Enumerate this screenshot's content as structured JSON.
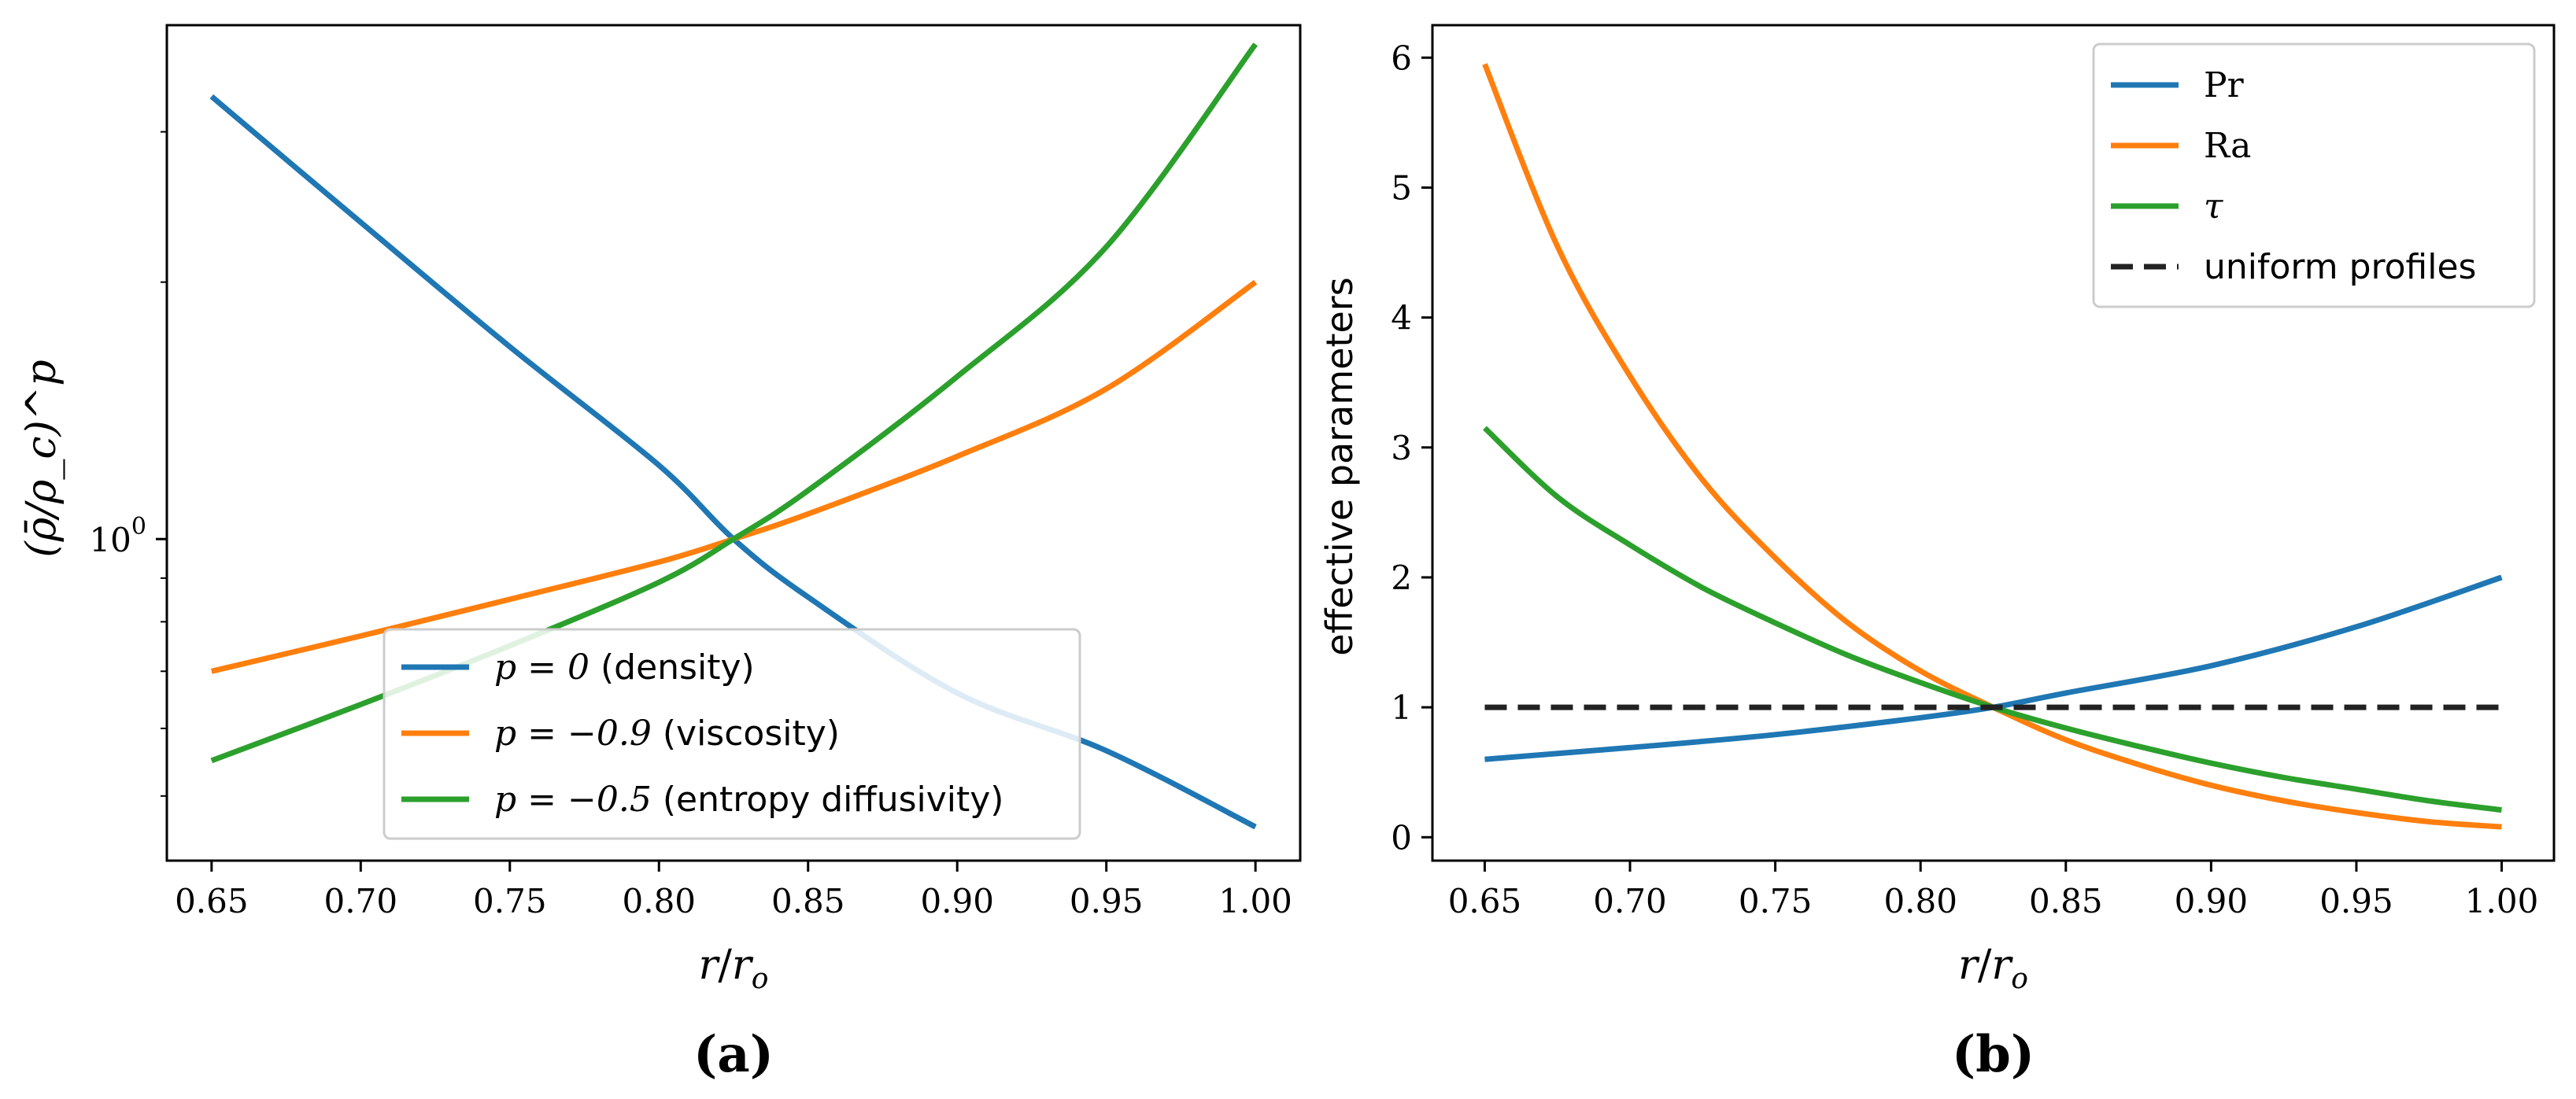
{
  "chart_data": [
    {
      "type": "line",
      "panel_label": "(a)",
      "title": "",
      "xlabel": "r/r_o",
      "xlabel_parts": {
        "num": "r",
        "den": "r",
        "den_sub": "o"
      },
      "ylabel": "(ρ̄/ρ_c)^p",
      "yscale": "log",
      "xlim": [
        0.635,
        1.015
      ],
      "ylim": [
        0.42,
        4.0
      ],
      "x_ticks": [
        "0.65",
        "0.70",
        "0.75",
        "0.80",
        "0.85",
        "0.90",
        "0.95",
        "1.00"
      ],
      "x_tick_values": [
        0.65,
        0.7,
        0.75,
        0.8,
        0.85,
        0.9,
        0.95,
        1.0
      ],
      "y_ticks": [
        {
          "value": 1.0,
          "label": "10",
          "exp": "0"
        }
      ],
      "y_minor_ticks": [
        0.5,
        0.6,
        0.7,
        0.8,
        0.9,
        2,
        3
      ],
      "legend_position": "lower-center",
      "series": [
        {
          "name": "p = 0 (density)",
          "math": "p = 0",
          "text": "(density)",
          "color": "#1f77b4",
          "x": [
            0.65,
            0.7,
            0.75,
            0.8,
            0.825,
            0.85,
            0.9,
            0.95,
            1.0
          ],
          "y": [
            3.3,
            2.35,
            1.68,
            1.22,
            1.0,
            0.855,
            0.66,
            0.565,
            0.46
          ]
        },
        {
          "name": "p = -0.9 (viscosity)",
          "math": "p = −0.9",
          "text": "(viscosity)",
          "color": "#ff7f0e",
          "x": [
            0.65,
            0.7,
            0.75,
            0.8,
            0.825,
            0.85,
            0.9,
            0.95,
            1.0
          ],
          "y": [
            0.7,
            0.77,
            0.85,
            0.94,
            1.0,
            1.07,
            1.25,
            1.5,
            2.0
          ]
        },
        {
          "name": "p = -0.5 (entropy diffusivity)",
          "math": "p = −0.5",
          "text": "(entropy diffusivity)",
          "color": "#2ca02c",
          "x": [
            0.65,
            0.7,
            0.75,
            0.8,
            0.825,
            0.85,
            0.9,
            0.95,
            1.0
          ],
          "y": [
            0.55,
            0.64,
            0.75,
            0.89,
            1.0,
            1.14,
            1.55,
            2.2,
            3.8
          ]
        }
      ]
    },
    {
      "type": "line",
      "panel_label": "(b)",
      "title": "",
      "xlabel": "r/r_o",
      "xlabel_parts": {
        "num": "r",
        "den": "r",
        "den_sub": "o"
      },
      "ylabel": "effective parameters",
      "yscale": "linear",
      "xlim": [
        0.632,
        1.018
      ],
      "ylim": [
        -0.18,
        6.25
      ],
      "x_ticks": [
        "0.65",
        "0.70",
        "0.75",
        "0.80",
        "0.85",
        "0.90",
        "0.95",
        "1.00"
      ],
      "x_tick_values": [
        0.65,
        0.7,
        0.75,
        0.8,
        0.85,
        0.9,
        0.95,
        1.0
      ],
      "y_ticks": [
        "0",
        "1",
        "2",
        "3",
        "4",
        "5",
        "6"
      ],
      "y_tick_values": [
        0,
        1,
        2,
        3,
        4,
        5,
        6
      ],
      "legend_position": "top-right",
      "series": [
        {
          "name": "Pr",
          "color": "#1f77b4",
          "x": [
            0.65,
            0.7,
            0.75,
            0.8,
            0.825,
            0.85,
            0.9,
            0.95,
            1.0
          ],
          "y": [
            0.6,
            0.69,
            0.79,
            0.92,
            1.0,
            1.11,
            1.32,
            1.62,
            2.0
          ]
        },
        {
          "name": "Ra",
          "color": "#ff7f0e",
          "x": [
            0.65,
            0.675,
            0.7,
            0.725,
            0.75,
            0.775,
            0.8,
            0.825,
            0.85,
            0.875,
            0.9,
            0.925,
            0.95,
            0.975,
            1.0
          ],
          "y": [
            5.95,
            4.55,
            3.55,
            2.75,
            2.15,
            1.65,
            1.28,
            1.0,
            0.75,
            0.56,
            0.4,
            0.28,
            0.19,
            0.12,
            0.08
          ]
        },
        {
          "name": "τ",
          "color": "#2ca02c",
          "x": [
            0.65,
            0.675,
            0.7,
            0.725,
            0.75,
            0.775,
            0.8,
            0.825,
            0.85,
            0.875,
            0.9,
            0.925,
            0.95,
            0.975,
            1.0
          ],
          "y": [
            3.15,
            2.62,
            2.25,
            1.92,
            1.65,
            1.4,
            1.19,
            1.0,
            0.84,
            0.7,
            0.57,
            0.46,
            0.37,
            0.28,
            0.21
          ]
        },
        {
          "name": "uniform profiles",
          "color": "#222222",
          "dashed": true,
          "x": [
            0.65,
            1.0
          ],
          "y": [
            1.0,
            1.0
          ]
        }
      ]
    }
  ]
}
